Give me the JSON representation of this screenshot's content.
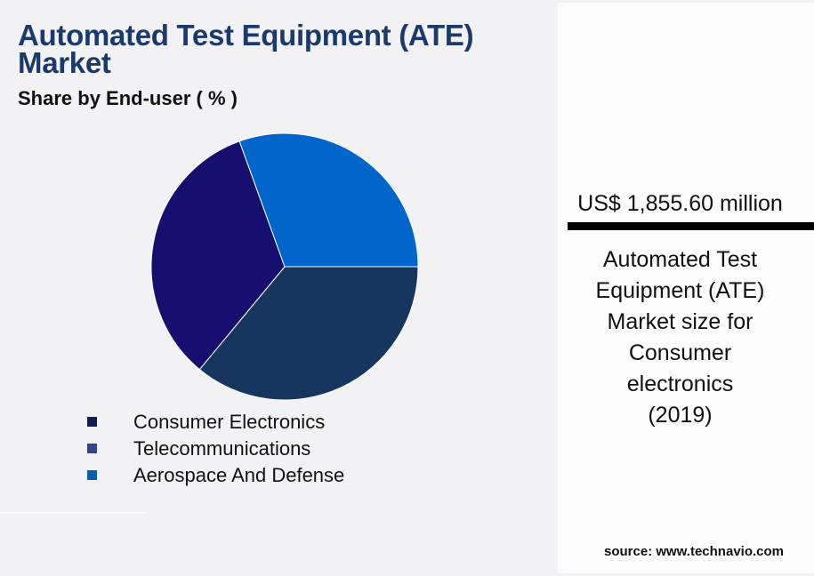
{
  "title": "Automated Test Equipment (ATE) Market",
  "subtitle": "Share by End-user ( % )",
  "chart_data": {
    "type": "pie",
    "title": "Automated Test Equipment (ATE) Market",
    "subtitle": "Share by End-user ( % )",
    "categories": [
      "Consumer Electronics",
      "Telecommunications",
      "Aerospace And Defense"
    ],
    "values": [
      36.0,
      33.5,
      30.5
    ],
    "colors": [
      "#16365f",
      "#170f70",
      "#0066cc"
    ],
    "legend_colors": [
      "#0d1e4f",
      "#2f4680",
      "#0a5cb0"
    ],
    "legend_position": "bottom"
  },
  "side_panel": {
    "value": "US$ 1,855.60 million",
    "description_lines": [
      "Automated Test",
      "Equipment (ATE)",
      "Market size for",
      "Consumer",
      "electronics",
      "(2019)"
    ],
    "source": "source: www.technavio.com"
  }
}
